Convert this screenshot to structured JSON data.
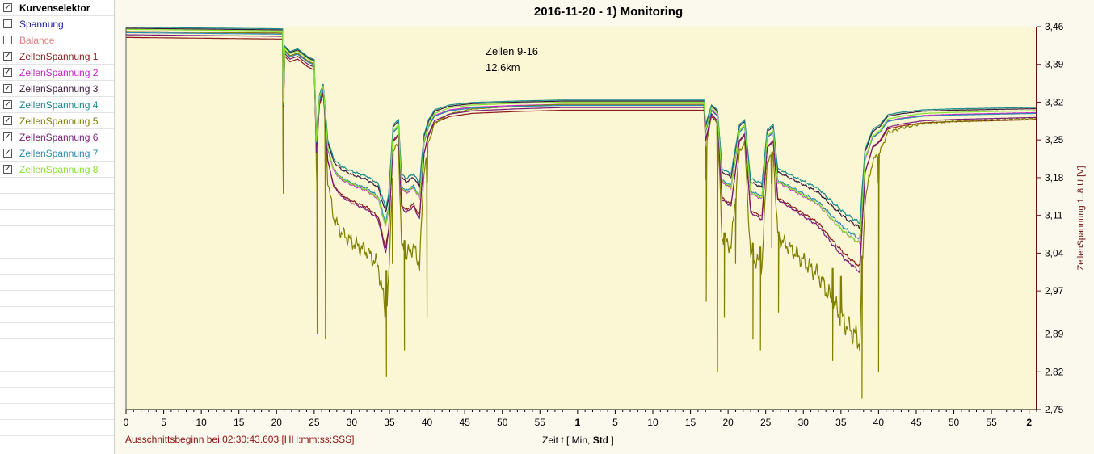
{
  "sidebar": {
    "header": {
      "label": "Kurvenselektor",
      "checked": true
    },
    "items": [
      {
        "label": "Spannung",
        "checked": false,
        "color": "#1a1a9a"
      },
      {
        "label": "Balance",
        "checked": false,
        "color": "#e08080"
      },
      {
        "label": "ZellenSpannung 1",
        "checked": true,
        "color": "#8b1a1a"
      },
      {
        "label": "ZellenSpannung 2",
        "checked": true,
        "color": "#cc22cc"
      },
      {
        "label": "ZellenSpannung 3",
        "checked": true,
        "color": "#3a1a3a"
      },
      {
        "label": "ZellenSpannung 4",
        "checked": true,
        "color": "#1a8a8a"
      },
      {
        "label": "ZellenSpannung 5",
        "checked": true,
        "color": "#808000"
      },
      {
        "label": "ZellenSpannung 6",
        "checked": true,
        "color": "#7a1a7a"
      },
      {
        "label": "ZellenSpannung 7",
        "checked": true,
        "color": "#2a8ab0"
      },
      {
        "label": "ZellenSpannung 8",
        "checked": true,
        "color": "#88e030"
      }
    ]
  },
  "chart_data": {
    "type": "line",
    "title": "2016-11-20 - 1) Monitoring",
    "annotation": [
      "Zellen 9-16",
      "12,6km"
    ],
    "xlabel_parts": [
      "Zeit   t   [ Min, ",
      "Std",
      " ]"
    ],
    "ylabel": "ZellenSpannung 1..8   U  [V]",
    "start_note": "Ausschnittsbeginn bei 02:30:43.603 [HH:mm:ss:SSS]",
    "xlim": [
      0,
      121
    ],
    "ylim": [
      2.75,
      3.46
    ],
    "x_ticks": [
      {
        "v": 0,
        "label": "0"
      },
      {
        "v": 5,
        "label": "5"
      },
      {
        "v": 10,
        "label": "10"
      },
      {
        "v": 15,
        "label": "15"
      },
      {
        "v": 20,
        "label": "20"
      },
      {
        "v": 25,
        "label": "25"
      },
      {
        "v": 30,
        "label": "30"
      },
      {
        "v": 35,
        "label": "35"
      },
      {
        "v": 40,
        "label": "40"
      },
      {
        "v": 45,
        "label": "45"
      },
      {
        "v": 50,
        "label": "50"
      },
      {
        "v": 55,
        "label": "55"
      },
      {
        "v": 60,
        "label": "1",
        "bold": true
      },
      {
        "v": 65,
        "label": "5"
      },
      {
        "v": 70,
        "label": "10"
      },
      {
        "v": 75,
        "label": "15"
      },
      {
        "v": 80,
        "label": "20"
      },
      {
        "v": 85,
        "label": "25"
      },
      {
        "v": 90,
        "label": "30"
      },
      {
        "v": 95,
        "label": "35"
      },
      {
        "v": 100,
        "label": "40"
      },
      {
        "v": 105,
        "label": "45"
      },
      {
        "v": 110,
        "label": "50"
      },
      {
        "v": 115,
        "label": "55"
      },
      {
        "v": 120,
        "label": "2",
        "bold": true
      }
    ],
    "y_ticks": [
      "3,46",
      "3,39",
      "3,32",
      "3,25",
      "3,18",
      "3,11",
      "3,04",
      "2,97",
      "2,89",
      "2,82",
      "2,75"
    ],
    "y_tick_values": [
      3.46,
      3.39,
      3.32,
      3.25,
      3.18,
      3.11,
      3.04,
      2.97,
      2.89,
      2.82,
      2.75
    ],
    "grid": false,
    "background": "#fbf7d5",
    "axis_color": "#6b1010",
    "base_curve": [
      [
        0,
        3.455
      ],
      [
        20.8,
        3.452
      ],
      [
        20.9,
        3.32
      ],
      [
        21.1,
        3.42
      ],
      [
        21.8,
        3.41
      ],
      [
        22.8,
        3.415
      ],
      [
        24.2,
        3.4
      ],
      [
        25.0,
        3.395
      ],
      [
        25.3,
        3.25
      ],
      [
        25.7,
        3.33
      ],
      [
        26.2,
        3.35
      ],
      [
        26.8,
        3.24
      ],
      [
        27.6,
        3.2
      ],
      [
        28.6,
        3.185
      ],
      [
        30.0,
        3.175
      ],
      [
        32.0,
        3.165
      ],
      [
        33.5,
        3.15
      ],
      [
        34.5,
        3.1
      ],
      [
        34.9,
        3.13
      ],
      [
        35.5,
        3.27
      ],
      [
        36.2,
        3.28
      ],
      [
        36.6,
        3.17
      ],
      [
        37.2,
        3.16
      ],
      [
        38.2,
        3.17
      ],
      [
        39.0,
        3.15
      ],
      [
        39.6,
        3.25
      ],
      [
        40.2,
        3.28
      ],
      [
        41.0,
        3.3
      ],
      [
        43.0,
        3.31
      ],
      [
        46.0,
        3.315
      ],
      [
        52.0,
        3.318
      ],
      [
        58.0,
        3.32
      ],
      [
        66.0,
        3.32
      ],
      [
        75.0,
        3.32
      ],
      [
        76.8,
        3.32
      ],
      [
        77.0,
        3.27
      ],
      [
        77.8,
        3.31
      ],
      [
        78.6,
        3.3
      ],
      [
        79.2,
        3.18
      ],
      [
        80.4,
        3.17
      ],
      [
        81.5,
        3.27
      ],
      [
        82.2,
        3.28
      ],
      [
        83.0,
        3.16
      ],
      [
        84.5,
        3.15
      ],
      [
        85.2,
        3.26
      ],
      [
        86.0,
        3.27
      ],
      [
        86.6,
        3.18
      ],
      [
        88.0,
        3.17
      ],
      [
        90.0,
        3.155
      ],
      [
        92.0,
        3.14
      ],
      [
        94.0,
        3.11
      ],
      [
        95.5,
        3.09
      ],
      [
        97.0,
        3.075
      ],
      [
        97.5,
        3.07
      ],
      [
        98.2,
        3.22
      ],
      [
        99.2,
        3.26
      ],
      [
        100.2,
        3.27
      ],
      [
        101.2,
        3.29
      ],
      [
        103.0,
        3.295
      ],
      [
        106.0,
        3.3
      ],
      [
        110.0,
        3.302
      ],
      [
        121,
        3.305
      ]
    ],
    "dips": [
      [
        20.9,
        3.15
      ],
      [
        25.4,
        2.89
      ],
      [
        26.5,
        2.88
      ],
      [
        34.6,
        2.81
      ],
      [
        35.4,
        3.02
      ],
      [
        37.0,
        2.86
      ],
      [
        40.0,
        2.92
      ],
      [
        77.1,
        2.95
      ],
      [
        78.6,
        2.82
      ],
      [
        79.5,
        2.92
      ],
      [
        81.0,
        3.02
      ],
      [
        83.3,
        2.88
      ],
      [
        84.3,
        2.86
      ],
      [
        85.8,
        3.05
      ],
      [
        86.7,
        2.93
      ],
      [
        93.9,
        2.84
      ],
      [
        95.0,
        2.96
      ],
      [
        97.8,
        2.77
      ],
      [
        100.0,
        2.82
      ]
    ],
    "series": [
      {
        "name": "ZellenSpannung 1",
        "color": "#8b1a1a",
        "offset": -0.015,
        "sag": -0.04
      },
      {
        "name": "ZellenSpannung 2",
        "color": "#cc22cc",
        "offset": -0.004,
        "sag": -0.008
      },
      {
        "name": "ZellenSpannung 3",
        "color": "#3a1a3a",
        "offset": 0.002,
        "sag": 0.015
      },
      {
        "name": "ZellenSpannung 4",
        "color": "#1a8a8a",
        "offset": 0.004,
        "sag": 0.022
      },
      {
        "name": "ZellenSpannung 5",
        "color": "#808000",
        "offset": -0.004,
        "sag": -0.19
      },
      {
        "name": "ZellenSpannung 6",
        "color": "#7a1a7a",
        "offset": -0.01,
        "sag": -0.055
      },
      {
        "name": "ZellenSpannung 7",
        "color": "#2a8ab0",
        "offset": -0.006,
        "sag": 0.002
      },
      {
        "name": "ZellenSpannung 8",
        "color": "#88e030",
        "offset": 0.0,
        "sag": -0.012
      }
    ]
  }
}
